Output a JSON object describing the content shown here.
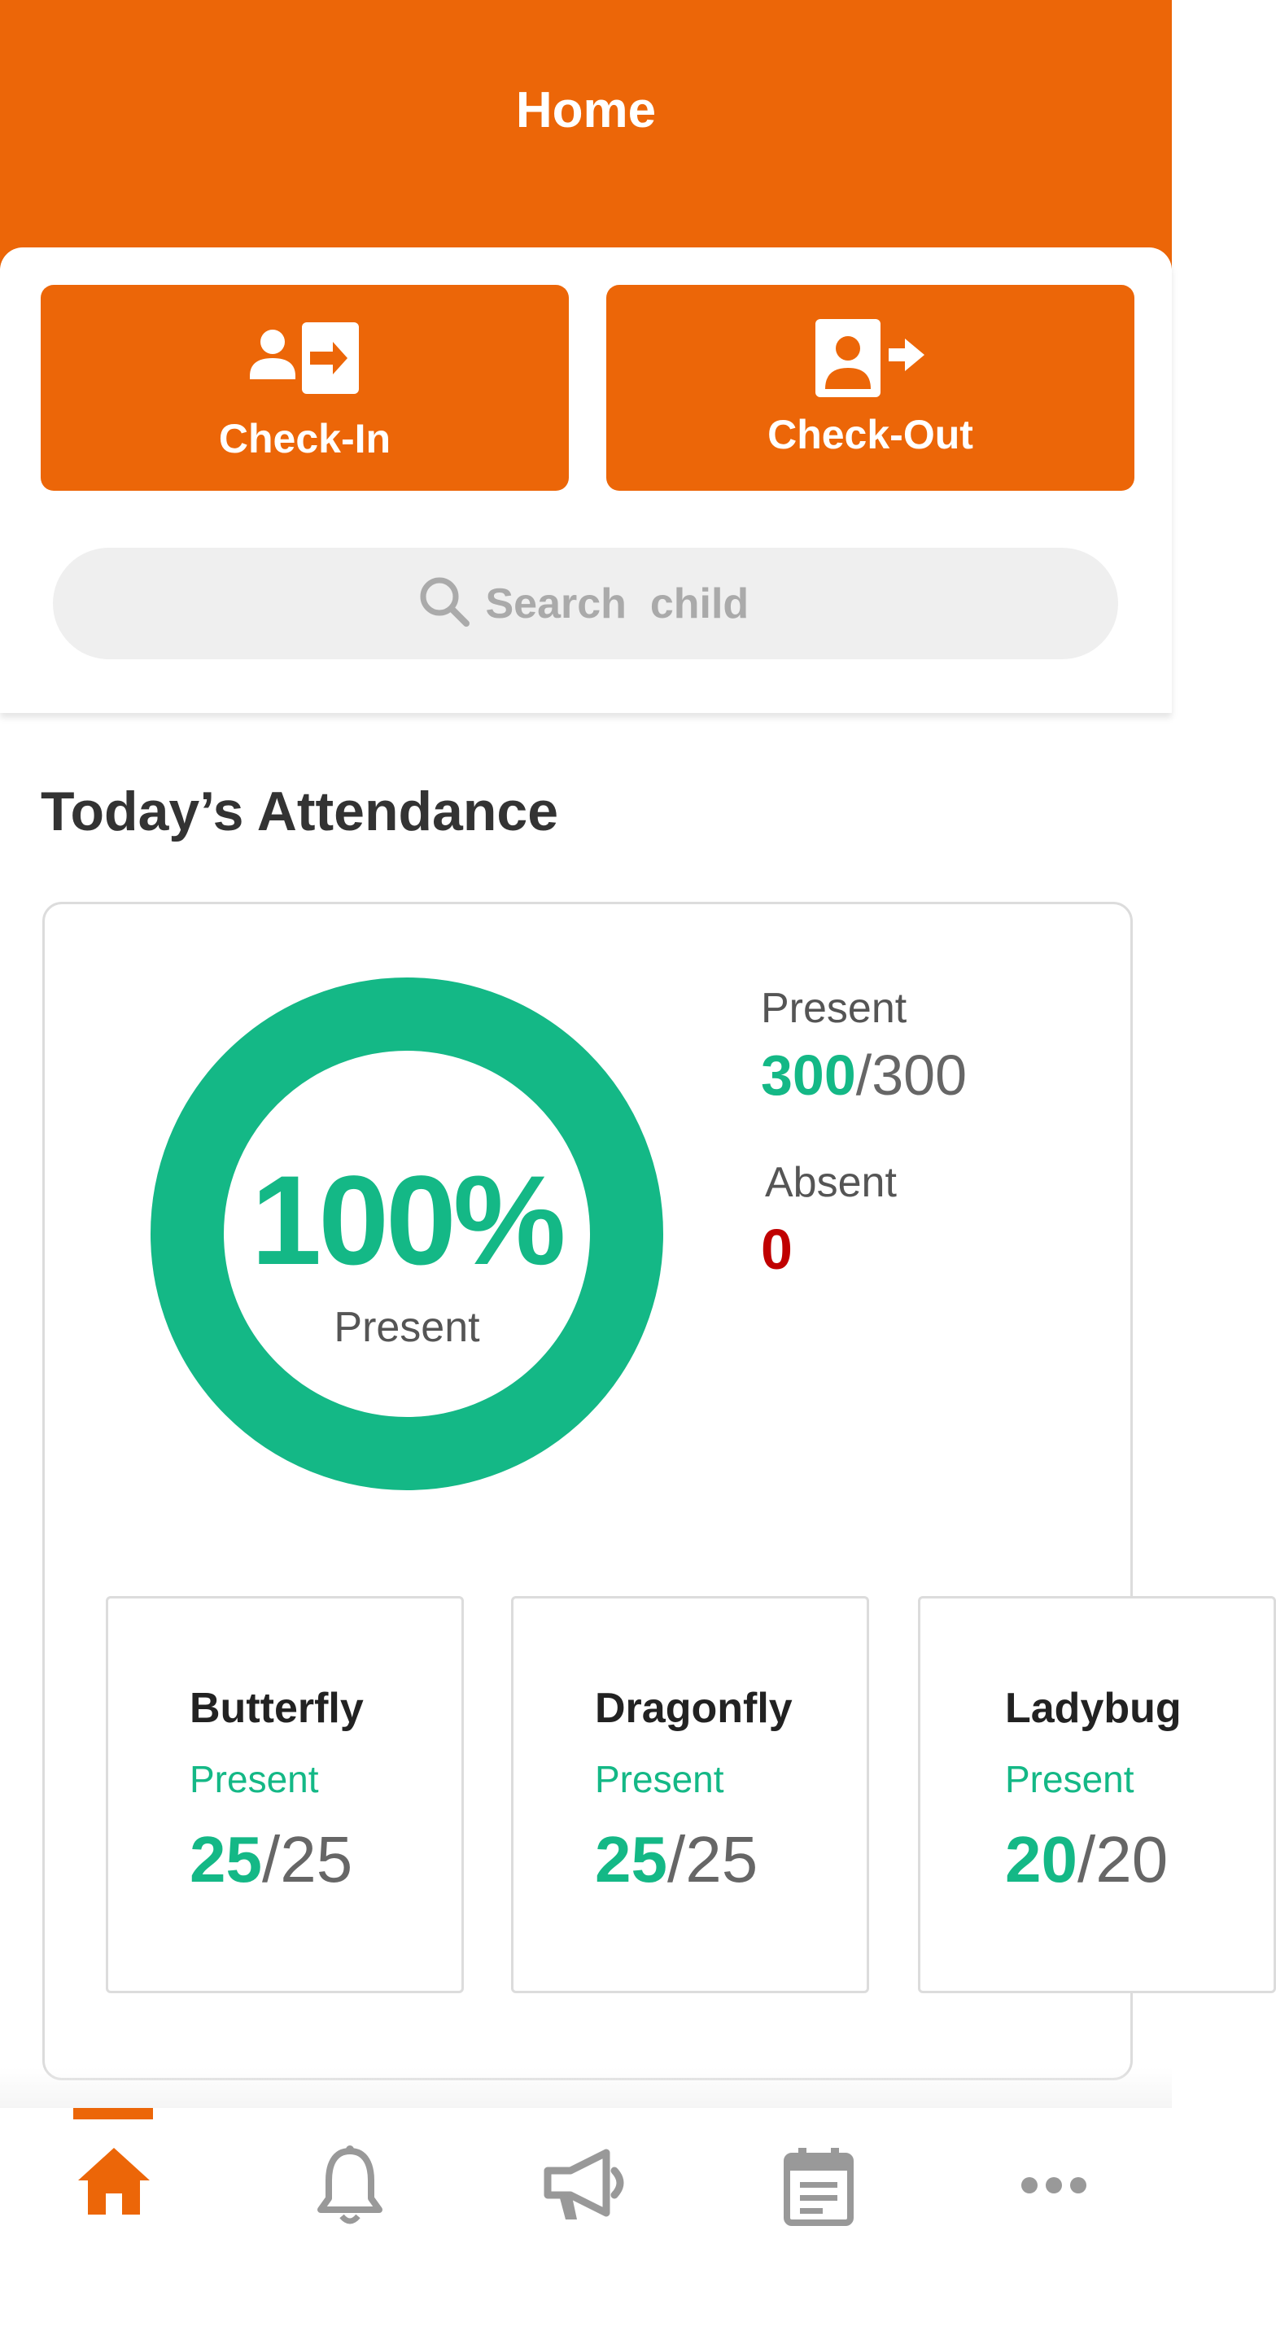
{
  "header": {
    "title": "Home"
  },
  "actions": {
    "checkin_label": "Check-In",
    "checkout_label": "Check-Out"
  },
  "search": {
    "placeholder": "Search  child"
  },
  "attendance": {
    "section_title": "Today’s Attendance",
    "percent": "100%",
    "percent_value": 100,
    "percent_label": "Present",
    "present_label": "Present",
    "present_count": "300",
    "present_total": "/300",
    "absent_label": "Absent",
    "absent_count": "0"
  },
  "classes": [
    {
      "name": "Butterfly",
      "status": "Present",
      "count": "25",
      "total": "/25"
    },
    {
      "name": "Dragonfly",
      "status": "Present",
      "count": "25",
      "total": "/25"
    },
    {
      "name": "Ladybug",
      "status": "Present",
      "count": "20",
      "total": "/20"
    }
  ],
  "nav": {
    "items": [
      "home-icon",
      "bell-icon",
      "megaphone-icon",
      "calendar-icon",
      "more-icon"
    ],
    "active": "home-icon"
  },
  "colors": {
    "brand": "#EC6608",
    "present": "#14B886",
    "absent": "#C00000",
    "inactive": "#999999"
  }
}
